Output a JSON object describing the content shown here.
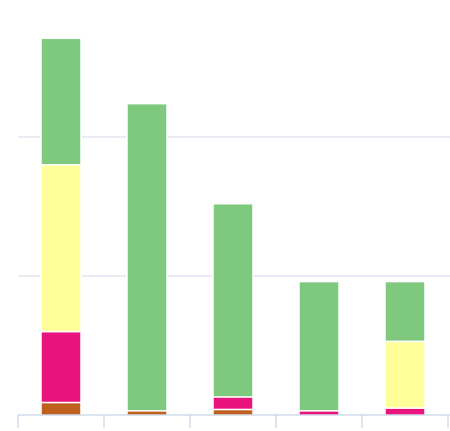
{
  "chart_data": {
    "type": "stacked-bar",
    "categories": [
      null,
      null,
      null,
      null,
      null
    ],
    "series": [
      {
        "color": "#c0601e",
        "values": [
          9,
          3,
          4,
          0,
          0
        ]
      },
      {
        "color": "#e8137b",
        "values": [
          51,
          0,
          9,
          3,
          5
        ]
      },
      {
        "color": "#ffff99",
        "values": [
          120,
          0,
          0,
          0,
          48
        ]
      },
      {
        "color": "#7fc97f",
        "values": [
          91,
          221,
          139,
          93,
          43
        ]
      }
    ],
    "ylim": [
      0,
      300
    ],
    "yticks": [
      0,
      100,
      200
    ],
    "grid": true
  }
}
